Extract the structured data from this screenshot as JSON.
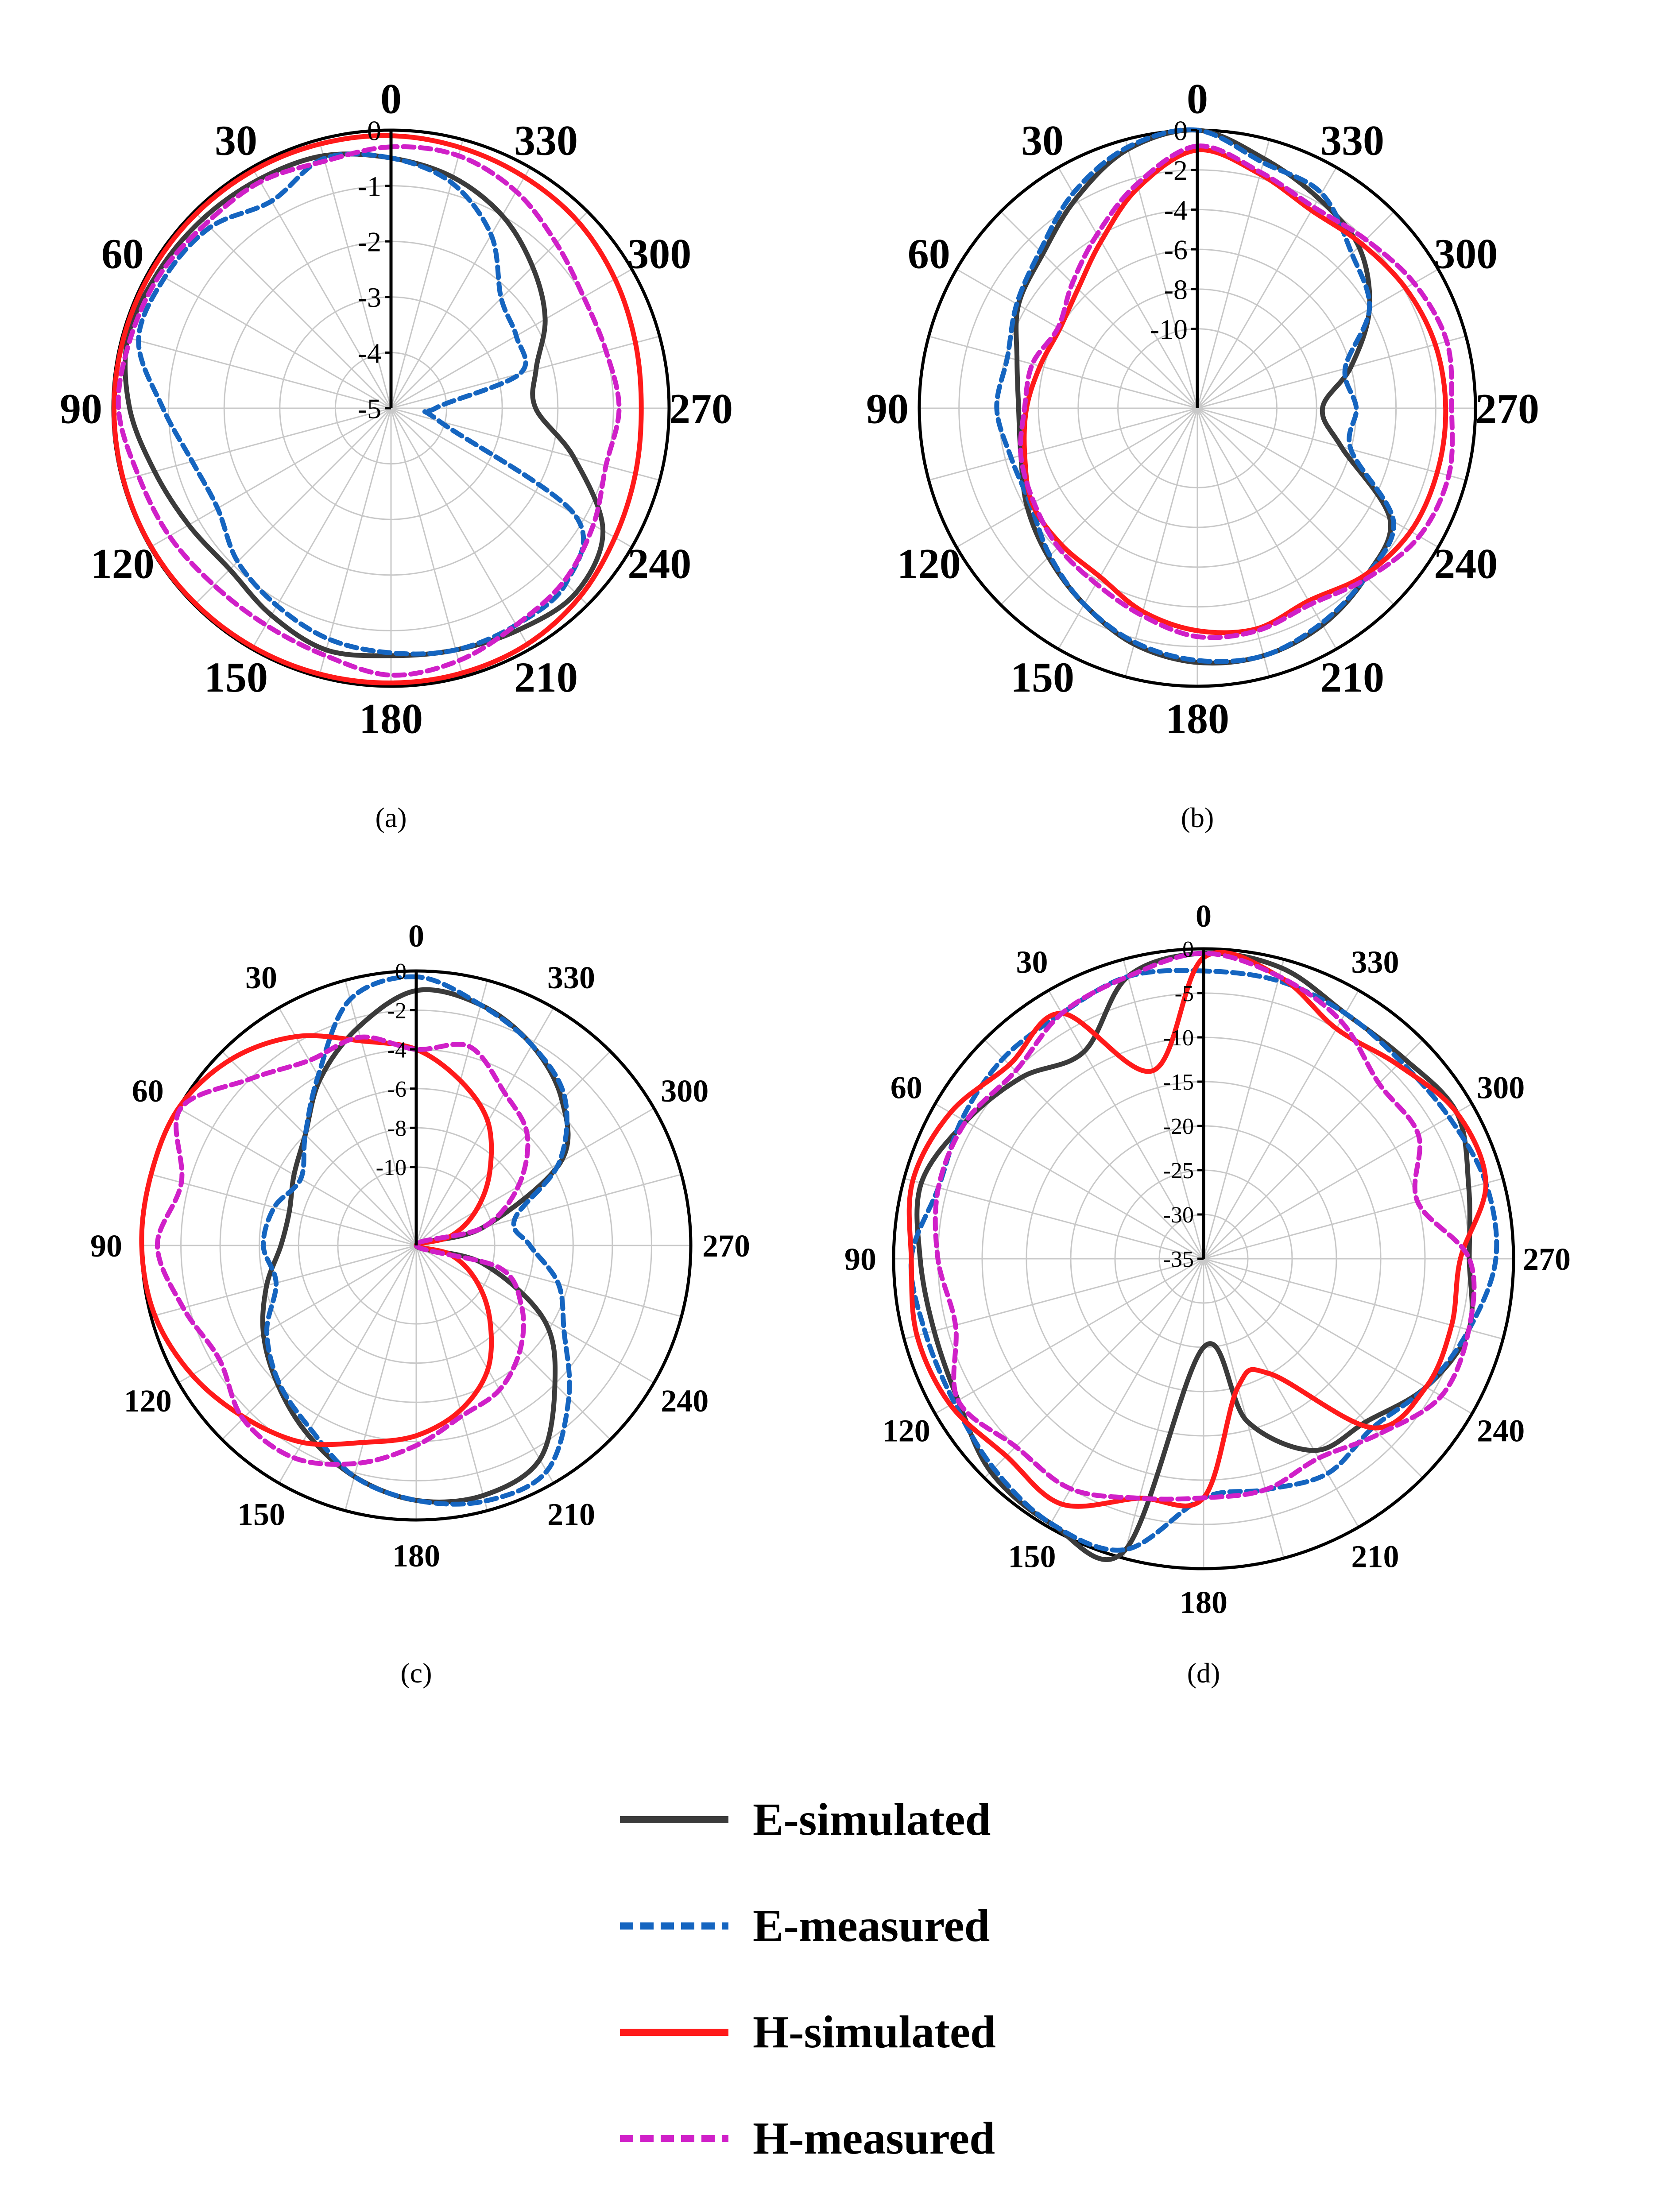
{
  "chart_data": [
    {
      "type": "polar",
      "caption": "(a)",
      "angle_ticks": [
        "0",
        "30",
        "60",
        "90",
        "120",
        "150",
        "180",
        "210",
        "240",
        "270",
        "300",
        "330"
      ],
      "radial_ticks": [
        "0",
        "-1",
        "-2",
        "-3",
        "-4",
        "-5"
      ],
      "r_min": -5,
      "r_max": 0,
      "angular_direction": "counterclockwise",
      "series": [
        {
          "name": "E-simulated",
          "theta": [
            0,
            15,
            30,
            45,
            60,
            75,
            90,
            105,
            120,
            135,
            150,
            165,
            180,
            195,
            210,
            225,
            240,
            255,
            270,
            285,
            300,
            315,
            330,
            345
          ],
          "values": [
            -0.5,
            -0.3,
            -0.25,
            -0.2,
            -0.15,
            -0.1,
            -0.3,
            -0.6,
            -0.8,
            -0.9,
            -0.7,
            -0.5,
            -0.55,
            -0.5,
            -0.4,
            -0.3,
            -0.6,
            -1.6,
            -2.4,
            -2.3,
            -1.8,
            -1.4,
            -1.0,
            -0.7
          ]
        },
        {
          "name": "E-measured",
          "theta": [
            0,
            15,
            30,
            45,
            60,
            75,
            90,
            105,
            120,
            135,
            150,
            165,
            180,
            195,
            210,
            225,
            240,
            255,
            270,
            285,
            300,
            315,
            330,
            345
          ],
          "values": [
            -0.5,
            -0.35,
            -0.7,
            -0.4,
            -0.3,
            -0.3,
            -0.9,
            -1.3,
            -1.4,
            -1.1,
            -0.9,
            -0.7,
            -0.6,
            -0.5,
            -0.5,
            -0.55,
            -1.2,
            -4.1,
            -4.2,
            -2.6,
            -2.4,
            -2.2,
            -1.4,
            -0.8
          ]
        },
        {
          "name": "H-simulated",
          "theta": [
            0,
            15,
            30,
            45,
            60,
            75,
            90,
            105,
            120,
            135,
            150,
            165,
            180,
            195,
            210,
            225,
            240,
            255,
            270,
            285,
            300,
            315,
            330,
            345
          ],
          "values": [
            -0.1,
            -0.08,
            -0.06,
            -0.05,
            -0.04,
            -0.03,
            -0.02,
            -0.02,
            -0.02,
            -0.03,
            -0.04,
            -0.05,
            -0.06,
            -0.07,
            -0.1,
            -0.2,
            -0.35,
            -0.45,
            -0.5,
            -0.45,
            -0.35,
            -0.25,
            -0.2,
            -0.15
          ]
        },
        {
          "name": "H-measured",
          "theta": [
            0,
            15,
            30,
            45,
            60,
            75,
            90,
            105,
            120,
            135,
            150,
            165,
            180,
            195,
            210,
            225,
            240,
            255,
            270,
            285,
            300,
            315,
            330,
            345
          ],
          "values": [
            -0.3,
            -0.4,
            -0.3,
            -0.3,
            -0.2,
            -0.15,
            -0.1,
            -0.3,
            -0.4,
            -0.5,
            -0.5,
            -0.4,
            -0.2,
            -0.3,
            -0.5,
            -0.6,
            -0.8,
            -1.0,
            -0.9,
            -1.0,
            -1.0,
            -0.8,
            -0.5,
            -0.3
          ]
        }
      ]
    },
    {
      "type": "polar",
      "caption": "(b)",
      "angle_ticks": [
        "0",
        "30",
        "60",
        "90",
        "120",
        "150",
        "180",
        "210",
        "240",
        "270",
        "300",
        "330"
      ],
      "radial_ticks": [
        "0",
        "-2",
        "-4",
        "-6",
        "-8",
        "-10"
      ],
      "r_min": -14,
      "r_max": 0,
      "angular_direction": "counterclockwise",
      "series": [
        {
          "name": "E-simulated",
          "theta": [
            0,
            15,
            30,
            45,
            60,
            75,
            90,
            105,
            120,
            135,
            150,
            165,
            180,
            195,
            210,
            225,
            240,
            255,
            270,
            285,
            300,
            315,
            330,
            345
          ],
          "values": [
            0,
            -0.5,
            -1.8,
            -3,
            -3.6,
            -4.6,
            -5.0,
            -4.8,
            -4.1,
            -3.4,
            -2.6,
            -1.7,
            -1.2,
            -1.1,
            -1.4,
            -2,
            -2.8,
            -6.5,
            -7.7,
            -6,
            -4,
            -2.5,
            -1.8,
            -1
          ]
        },
        {
          "name": "E-measured",
          "theta": [
            0,
            15,
            30,
            45,
            60,
            75,
            90,
            105,
            120,
            135,
            150,
            165,
            180,
            195,
            210,
            225,
            240,
            255,
            270,
            285,
            300,
            315,
            330,
            345
          ],
          "values": [
            0,
            -0.4,
            -1.5,
            -2.8,
            -3.5,
            -4.1,
            -3.9,
            -4.3,
            -4.3,
            -3.5,
            -2.6,
            -1.8,
            -1.3,
            -1.1,
            -1.5,
            -2,
            -2.6,
            -6,
            -6,
            -6.3,
            -4,
            -3,
            -1.5,
            -1.2
          ]
        },
        {
          "name": "H-simulated",
          "theta": [
            0,
            15,
            30,
            45,
            60,
            75,
            90,
            105,
            120,
            135,
            150,
            165,
            180,
            195,
            210,
            225,
            240,
            255,
            270,
            285,
            300,
            315,
            330,
            345
          ],
          "values": [
            -1,
            -2.5,
            -4.3,
            -5.5,
            -6,
            -5.8,
            -5.4,
            -5,
            -4.4,
            -4.3,
            -4.2,
            -3.4,
            -2.8,
            -2.5,
            -2.8,
            -2.1,
            -1.6,
            -1.5,
            -1.5,
            -1.6,
            -1.9,
            -2.3,
            -2.5,
            -1.8
          ]
        },
        {
          "name": "H-measured",
          "theta": [
            0,
            15,
            30,
            45,
            60,
            75,
            90,
            105,
            120,
            135,
            150,
            165,
            180,
            195,
            210,
            225,
            240,
            255,
            270,
            285,
            300,
            315,
            330,
            345
          ],
          "values": [
            -0.8,
            -2.3,
            -3.9,
            -5.1,
            -5.9,
            -5.4,
            -5.3,
            -4.8,
            -4.5,
            -4.1,
            -3.8,
            -3.2,
            -2.5,
            -2.4,
            -2.6,
            -1.9,
            -1.1,
            -0.9,
            -1.2,
            -1.0,
            -1.4,
            -2.0,
            -2.3,
            -1.7
          ]
        }
      ]
    },
    {
      "type": "polar",
      "caption": "(c)",
      "angle_ticks": [
        "0",
        "30",
        "60",
        "90",
        "120",
        "150",
        "180",
        "210",
        "240",
        "270",
        "300",
        "330"
      ],
      "radial_ticks": [
        "0",
        "-2",
        "-4",
        "-6",
        "-8",
        "-10"
      ],
      "r_min": -14,
      "r_max": 0,
      "angular_direction": "counterclockwise",
      "series": [
        {
          "name": "E-simulated",
          "theta": [
            0,
            15,
            30,
            45,
            60,
            75,
            90,
            105,
            120,
            135,
            150,
            165,
            180,
            195,
            210,
            225,
            240,
            255,
            270,
            285,
            300,
            315,
            330,
            345
          ],
          "values": [
            -1,
            -2.5,
            -4.2,
            -6,
            -6.8,
            -7.3,
            -7.1,
            -6.1,
            -5,
            -4,
            -2.9,
            -1.8,
            -1,
            -0.8,
            -1.4,
            -4,
            -6.5,
            -10.5,
            -14,
            -10.5,
            -5.5,
            -3.5,
            -2.2,
            -1.3
          ]
        },
        {
          "name": "E-measured",
          "theta": [
            0,
            15,
            30,
            45,
            60,
            75,
            90,
            105,
            120,
            135,
            150,
            165,
            180,
            195,
            210,
            225,
            240,
            255,
            270,
            285,
            300,
            315,
            330,
            345
          ],
          "values": [
            -0.3,
            -1,
            -4,
            -6,
            -7.2,
            -6.5,
            -6.2,
            -6.6,
            -5.2,
            -4.1,
            -3.2,
            -1.8,
            -1,
            -0.5,
            -0.7,
            -3,
            -5.3,
            -6.5,
            -8.2,
            -8.8,
            -5.6,
            -3.3,
            -2.2,
            -1.3
          ]
        },
        {
          "name": "H-simulated",
          "theta": [
            0,
            15,
            30,
            45,
            60,
            75,
            90,
            105,
            120,
            135,
            150,
            165,
            180,
            195,
            210,
            225,
            240,
            255,
            270,
            285,
            300,
            315,
            330,
            345
          ],
          "values": [
            -4,
            -3.2,
            -1.7,
            -0.6,
            0,
            0,
            0,
            -0.2,
            -0.8,
            -1.6,
            -2.4,
            -3.6,
            -4.3,
            -5.3,
            -6.7,
            -8.7,
            -10.5,
            -12.2,
            -14,
            -12.2,
            -10.5,
            -8.7,
            -6.7,
            -5.3
          ]
        },
        {
          "name": "H-measured",
          "theta": [
            0,
            15,
            30,
            45,
            60,
            75,
            90,
            105,
            120,
            135,
            150,
            165,
            180,
            195,
            210,
            225,
            240,
            255,
            270,
            285,
            300,
            315,
            330,
            345
          ],
          "values": [
            -4,
            -3,
            -3.1,
            -2,
            -0.1,
            -1.6,
            -0.8,
            -1.7,
            -2.4,
            -1.5,
            -1.5,
            -2.5,
            -3.8,
            -5,
            -5.5,
            -6.5,
            -7.8,
            -9.6,
            -14,
            -10.5,
            -8,
            -6,
            -5,
            -3.5
          ]
        }
      ]
    },
    {
      "type": "polar",
      "caption": "(d)",
      "angle_ticks": [
        "0",
        "30",
        "60",
        "90",
        "120",
        "150",
        "180",
        "210",
        "240",
        "270",
        "300",
        "330"
      ],
      "radial_ticks": [
        "0",
        "-5",
        "-10",
        "-15",
        "-20",
        "-25",
        "-30",
        "-35"
      ],
      "r_min": -35,
      "r_max": 0,
      "angular_direction": "counterclockwise",
      "series": [
        {
          "name": "E-simulated",
          "theta": [
            0,
            15,
            30,
            45,
            60,
            75,
            90,
            105,
            120,
            135,
            150,
            165,
            180,
            195,
            210,
            225,
            240,
            255,
            270,
            285,
            300,
            315,
            330,
            345
          ],
          "values": [
            -0.5,
            -2,
            -8,
            -6,
            -4,
            -2,
            -3,
            -3.5,
            -3,
            -1,
            -0.5,
            -1,
            -25,
            -16,
            -10,
            -9,
            -6,
            -4,
            -5,
            -4,
            -2,
            -3,
            -3,
            -1
          ]
        },
        {
          "name": "E-measured",
          "theta": [
            0,
            15,
            30,
            45,
            60,
            75,
            90,
            105,
            120,
            135,
            150,
            165,
            180,
            195,
            210,
            225,
            240,
            255,
            270,
            285,
            300,
            315,
            330,
            345
          ],
          "values": [
            -2.5,
            -2,
            -3,
            -3,
            -3.5,
            -4,
            -2,
            -2.5,
            -2.5,
            -1.5,
            -0.5,
            -1,
            -8,
            -8,
            -7,
            -8,
            -6,
            -4,
            -2,
            -2,
            -3,
            -3.5,
            -3,
            -2.5
          ]
        },
        {
          "name": "H-simulated",
          "theta": [
            0,
            15,
            30,
            45,
            60,
            75,
            90,
            105,
            120,
            135,
            150,
            165,
            180,
            195,
            210,
            225,
            240,
            255,
            270,
            285,
            300,
            315,
            330,
            345
          ],
          "values": [
            -1,
            -13,
            -3,
            -4,
            -2,
            -1,
            -2,
            -1.5,
            -2,
            -3.5,
            -3,
            -7,
            -8,
            -20,
            -20,
            -8,
            -6,
            -6,
            -6,
            -2,
            -2,
            -4,
            -5,
            -2
          ]
        },
        {
          "name": "H-measured",
          "theta": [
            0,
            15,
            30,
            45,
            60,
            75,
            90,
            105,
            120,
            135,
            150,
            165,
            180,
            195,
            210,
            225,
            240,
            255,
            270,
            285,
            300,
            315,
            330,
            345
          ],
          "values": [
            -0.5,
            -2,
            -3,
            -5,
            -4,
            -4,
            -5,
            -6,
            -3,
            -5,
            -5,
            -7,
            -8,
            -8,
            -9,
            -7,
            -4,
            -4,
            -5,
            -10,
            -7,
            -7,
            -4,
            -2
          ]
        }
      ]
    }
  ],
  "legend": {
    "items": [
      {
        "label": "E-simulated",
        "color": "#3b3b3b",
        "dashed": false
      },
      {
        "label": "E-measured",
        "color": "#1565c0",
        "dashed": true
      },
      {
        "label": "H-simulated",
        "color": "#ff1a1a",
        "dashed": false
      },
      {
        "label": "H-measured",
        "color": "#d020c8",
        "dashed": true
      }
    ]
  },
  "colors": {
    "E-simulated": "#3b3b3b",
    "E-measured": "#1565c0",
    "H-simulated": "#ff1a1a",
    "H-measured": "#d020c8",
    "grid": "#c8c8c8",
    "axis": "#000000"
  }
}
